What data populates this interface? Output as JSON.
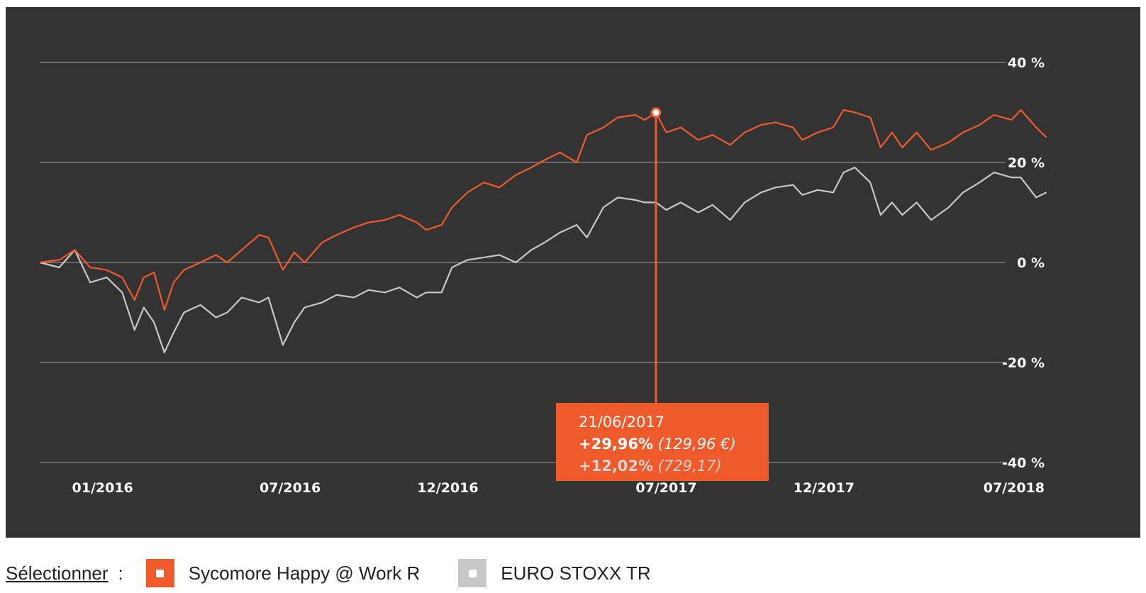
{
  "chart_data": {
    "type": "line",
    "ylim": [
      -40,
      40
    ],
    "y_ticks": [
      "40 %",
      "20 %",
      "0 %",
      "-20 %",
      "-40 %"
    ],
    "y_tick_values": [
      40,
      20,
      0,
      -20,
      -40
    ],
    "x_ticks": [
      "01/2016",
      "07/2016",
      "12/2016",
      "07/2017",
      "12/2017",
      "07/2018"
    ],
    "x_tick_dates": [
      "2016-01-01",
      "2016-07-01",
      "2016-12-01",
      "2017-07-01",
      "2017-12-01",
      "2018-07-01"
    ],
    "xlim": [
      "2015-11-01",
      "2018-07-10"
    ],
    "grid": true,
    "series": [
      {
        "name": "Sycomore Happy @ Work R",
        "color": "#f05a2b",
        "points": [
          [
            "2015-11-01",
            0
          ],
          [
            "2015-11-20",
            0.5
          ],
          [
            "2015-12-05",
            2.5
          ],
          [
            "2015-12-20",
            -1
          ],
          [
            "2016-01-05",
            -1.5
          ],
          [
            "2016-01-20",
            -3
          ],
          [
            "2016-02-01",
            -7.5
          ],
          [
            "2016-02-10",
            -3
          ],
          [
            "2016-02-20",
            -2
          ],
          [
            "2016-03-01",
            -9.5
          ],
          [
            "2016-03-10",
            -4
          ],
          [
            "2016-03-20",
            -1.5
          ],
          [
            "2016-04-05",
            0
          ],
          [
            "2016-04-20",
            1.5
          ],
          [
            "2016-05-01",
            0
          ],
          [
            "2016-05-15",
            2.5
          ],
          [
            "2016-06-01",
            5.5
          ],
          [
            "2016-06-10",
            5
          ],
          [
            "2016-06-24",
            -1.5
          ],
          [
            "2016-07-05",
            2
          ],
          [
            "2016-07-15",
            0
          ],
          [
            "2016-08-01",
            4
          ],
          [
            "2016-08-15",
            5.5
          ],
          [
            "2016-09-01",
            7
          ],
          [
            "2016-09-15",
            8
          ],
          [
            "2016-10-01",
            8.5
          ],
          [
            "2016-10-15",
            9.5
          ],
          [
            "2016-11-01",
            8
          ],
          [
            "2016-11-10",
            6.5
          ],
          [
            "2016-11-25",
            7.5
          ],
          [
            "2016-12-05",
            11
          ],
          [
            "2016-12-20",
            14
          ],
          [
            "2017-01-05",
            16
          ],
          [
            "2017-01-20",
            15
          ],
          [
            "2017-02-05",
            17.5
          ],
          [
            "2017-02-20",
            19
          ],
          [
            "2017-03-05",
            20.5
          ],
          [
            "2017-03-20",
            22
          ],
          [
            "2017-04-05",
            20
          ],
          [
            "2017-04-15",
            25.5
          ],
          [
            "2017-05-01",
            27
          ],
          [
            "2017-05-15",
            29
          ],
          [
            "2017-06-01",
            29.5
          ],
          [
            "2017-06-10",
            28.5
          ],
          [
            "2017-06-21",
            29.96
          ],
          [
            "2017-07-01",
            26
          ],
          [
            "2017-07-15",
            27
          ],
          [
            "2017-08-01",
            24.5
          ],
          [
            "2017-08-15",
            25.5
          ],
          [
            "2017-09-01",
            23.5
          ],
          [
            "2017-09-15",
            26
          ],
          [
            "2017-10-01",
            27.5
          ],
          [
            "2017-10-15",
            28
          ],
          [
            "2017-11-01",
            27
          ],
          [
            "2017-11-10",
            24.5
          ],
          [
            "2017-11-25",
            26
          ],
          [
            "2017-12-10",
            27
          ],
          [
            "2017-12-20",
            30.5
          ],
          [
            "2017-12-31",
            30
          ],
          [
            "2018-01-15",
            29
          ],
          [
            "2018-01-25",
            23
          ],
          [
            "2018-02-05",
            26
          ],
          [
            "2018-02-15",
            23
          ],
          [
            "2018-03-01",
            26
          ],
          [
            "2018-03-15",
            22.5
          ],
          [
            "2018-04-01",
            24
          ],
          [
            "2018-04-15",
            26
          ],
          [
            "2018-05-01",
            27.5
          ],
          [
            "2018-05-15",
            29.5
          ],
          [
            "2018-06-01",
            28.5
          ],
          [
            "2018-06-10",
            30.5
          ],
          [
            "2018-06-25",
            27
          ],
          [
            "2018-07-05",
            25
          ]
        ]
      },
      {
        "name": "EURO STOXX TR",
        "color": "#c8c8c8",
        "points": [
          [
            "2015-11-01",
            0
          ],
          [
            "2015-11-20",
            -1
          ],
          [
            "2015-12-05",
            2.5
          ],
          [
            "2015-12-20",
            -4
          ],
          [
            "2016-01-05",
            -3
          ],
          [
            "2016-01-20",
            -6
          ],
          [
            "2016-02-01",
            -13.5
          ],
          [
            "2016-02-10",
            -9
          ],
          [
            "2016-02-20",
            -12
          ],
          [
            "2016-03-01",
            -18
          ],
          [
            "2016-03-10",
            -14
          ],
          [
            "2016-03-20",
            -10
          ],
          [
            "2016-04-05",
            -8.5
          ],
          [
            "2016-04-20",
            -11
          ],
          [
            "2016-05-01",
            -10
          ],
          [
            "2016-05-15",
            -7
          ],
          [
            "2016-06-01",
            -8
          ],
          [
            "2016-06-10",
            -7
          ],
          [
            "2016-06-24",
            -16.5
          ],
          [
            "2016-07-05",
            -12
          ],
          [
            "2016-07-15",
            -9
          ],
          [
            "2016-08-01",
            -8
          ],
          [
            "2016-08-15",
            -6.5
          ],
          [
            "2016-09-01",
            -7
          ],
          [
            "2016-09-15",
            -5.5
          ],
          [
            "2016-10-01",
            -6
          ],
          [
            "2016-10-15",
            -5
          ],
          [
            "2016-11-01",
            -7
          ],
          [
            "2016-11-10",
            -6
          ],
          [
            "2016-11-25",
            -6
          ],
          [
            "2016-12-05",
            -1
          ],
          [
            "2016-12-20",
            0.5
          ],
          [
            "2017-01-05",
            1
          ],
          [
            "2017-01-20",
            1.5
          ],
          [
            "2017-02-05",
            0
          ],
          [
            "2017-02-20",
            2.5
          ],
          [
            "2017-03-05",
            4
          ],
          [
            "2017-03-20",
            6
          ],
          [
            "2017-04-05",
            7.5
          ],
          [
            "2017-04-15",
            5
          ],
          [
            "2017-05-01",
            11
          ],
          [
            "2017-05-15",
            13
          ],
          [
            "2017-06-01",
            12.5
          ],
          [
            "2017-06-10",
            12
          ],
          [
            "2017-06-21",
            12.02
          ],
          [
            "2017-07-01",
            10.5
          ],
          [
            "2017-07-15",
            12
          ],
          [
            "2017-08-01",
            10
          ],
          [
            "2017-08-15",
            11.5
          ],
          [
            "2017-09-01",
            8.5
          ],
          [
            "2017-09-15",
            12
          ],
          [
            "2017-10-01",
            14
          ],
          [
            "2017-10-15",
            15
          ],
          [
            "2017-11-01",
            15.5
          ],
          [
            "2017-11-10",
            13.5
          ],
          [
            "2017-11-25",
            14.5
          ],
          [
            "2017-12-10",
            14
          ],
          [
            "2017-12-20",
            18
          ],
          [
            "2017-12-31",
            19
          ],
          [
            "2018-01-15",
            16
          ],
          [
            "2018-01-25",
            9.5
          ],
          [
            "2018-02-05",
            12
          ],
          [
            "2018-02-15",
            9.5
          ],
          [
            "2018-03-01",
            12
          ],
          [
            "2018-03-15",
            8.5
          ],
          [
            "2018-04-01",
            11
          ],
          [
            "2018-04-15",
            14
          ],
          [
            "2018-05-01",
            16
          ],
          [
            "2018-05-15",
            18
          ],
          [
            "2018-06-01",
            17
          ],
          [
            "2018-06-10",
            17
          ],
          [
            "2018-06-25",
            13
          ],
          [
            "2018-07-05",
            14
          ]
        ]
      }
    ],
    "tooltip": {
      "date": "21/06/2017",
      "fund_return": "+29,96%",
      "fund_value": "(129,96 €)",
      "index_return": "+12,02%",
      "index_value": "(729,17)"
    }
  },
  "legend": {
    "select_label": "Sélectionner",
    "colon": ":",
    "items": [
      {
        "label": "Sycomore Happy @ Work R",
        "color": "#f05a2b"
      },
      {
        "label": "EURO STOXX TR",
        "color": "#c8c8c8"
      }
    ]
  }
}
